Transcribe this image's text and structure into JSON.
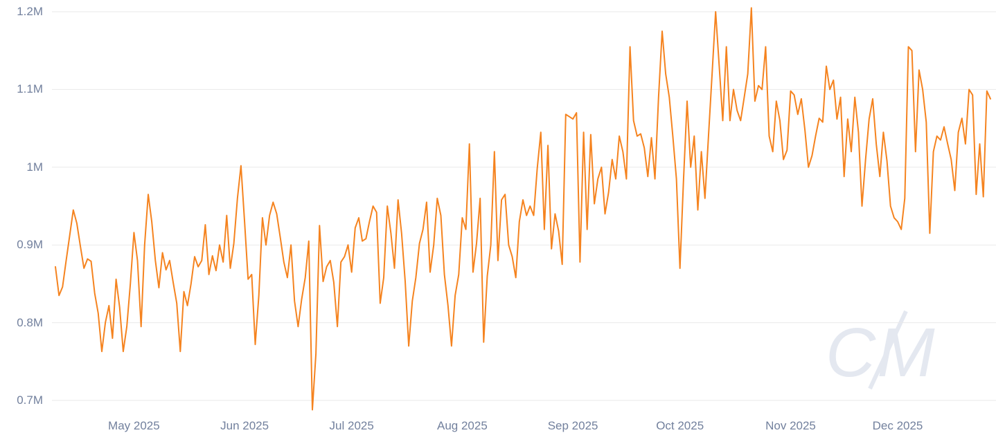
{
  "watermark": {
    "text": "CM"
  },
  "theme": {
    "background": "#ffffff",
    "gridline_color": "#e9e9e9",
    "axis_label_color": "#72809d",
    "watermark_color": "#e4e8f0"
  },
  "chart_data": {
    "type": "line",
    "title": "",
    "xlabel": "",
    "ylabel": "",
    "grid": true,
    "legend": false,
    "unit": "M",
    "x_start_date": "2025-04-09",
    "frequency": "daily",
    "ylim": [
      0.685,
      1.21
    ],
    "y_tick_values": [
      0.7,
      0.8,
      0.9,
      1.0,
      1.1,
      1.2
    ],
    "y_tick_labels": [
      "0.7M",
      "0.8M",
      "0.9M",
      "1M",
      "1.1M",
      "1.2M"
    ],
    "x_tick_labels": [
      "May 2025",
      "Jun 2025",
      "Jul 2025",
      "Aug 2025",
      "Sep 2025",
      "Oct 2025",
      "Nov 2025",
      "Dec 2025"
    ],
    "x_tick_day_indices": [
      22,
      53,
      83,
      114,
      145,
      175,
      206,
      236
    ],
    "series": [
      {
        "name": "value",
        "color": "#f5831f",
        "values": [
          0.872,
          0.835,
          0.846,
          0.88,
          0.912,
          0.945,
          0.928,
          0.898,
          0.87,
          0.882,
          0.879,
          0.838,
          0.812,
          0.763,
          0.8,
          0.822,
          0.78,
          0.856,
          0.82,
          0.763,
          0.795,
          0.85,
          0.916,
          0.88,
          0.795,
          0.9,
          0.965,
          0.93,
          0.88,
          0.845,
          0.89,
          0.868,
          0.88,
          0.852,
          0.825,
          0.763,
          0.84,
          0.822,
          0.85,
          0.885,
          0.872,
          0.88,
          0.926,
          0.862,
          0.886,
          0.867,
          0.9,
          0.878,
          0.938,
          0.87,
          0.902,
          0.96,
          1.002,
          0.93,
          0.856,
          0.862,
          0.772,
          0.835,
          0.935,
          0.9,
          0.938,
          0.955,
          0.94,
          0.91,
          0.878,
          0.858,
          0.9,
          0.828,
          0.795,
          0.83,
          0.858,
          0.905,
          0.688,
          0.76,
          0.925,
          0.853,
          0.872,
          0.88,
          0.852,
          0.795,
          0.878,
          0.885,
          0.9,
          0.865,
          0.922,
          0.935,
          0.905,
          0.908,
          0.93,
          0.95,
          0.942,
          0.825,
          0.858,
          0.95,
          0.915,
          0.87,
          0.958,
          0.915,
          0.853,
          0.77,
          0.828,
          0.858,
          0.902,
          0.92,
          0.955,
          0.865,
          0.9,
          0.96,
          0.938,
          0.862,
          0.822,
          0.77,
          0.835,
          0.862,
          0.935,
          0.92,
          1.03,
          0.865,
          0.902,
          0.96,
          0.775,
          0.86,
          0.9,
          1.02,
          0.88,
          0.958,
          0.965,
          0.9,
          0.885,
          0.858,
          0.93,
          0.958,
          0.938,
          0.95,
          0.938,
          0.998,
          1.045,
          0.92,
          1.028,
          0.895,
          0.94,
          0.918,
          0.875,
          1.068,
          1.065,
          1.062,
          1.07,
          0.878,
          1.045,
          0.92,
          1.042,
          0.953,
          0.985,
          1.0,
          0.94,
          0.968,
          1.01,
          0.985,
          1.04,
          1.02,
          0.985,
          1.155,
          1.06,
          1.04,
          1.043,
          1.025,
          0.988,
          1.038,
          0.985,
          1.09,
          1.175,
          1.12,
          1.09,
          1.04,
          0.985,
          0.87,
          0.985,
          1.085,
          1.0,
          1.04,
          0.945,
          1.02,
          0.96,
          1.04,
          1.12,
          1.2,
          1.13,
          1.06,
          1.155,
          1.06,
          1.1,
          1.073,
          1.06,
          1.09,
          1.12,
          1.205,
          1.085,
          1.105,
          1.1,
          1.155,
          1.04,
          1.02,
          1.085,
          1.06,
          1.01,
          1.022,
          1.098,
          1.093,
          1.068,
          1.088,
          1.048,
          1.0,
          1.015,
          1.04,
          1.063,
          1.058,
          1.13,
          1.1,
          1.112,
          1.062,
          1.09,
          0.988,
          1.062,
          1.02,
          1.09,
          1.045,
          0.95,
          1.01,
          1.062,
          1.088,
          1.03,
          0.988,
          1.045,
          1.008,
          0.95,
          0.935,
          0.93,
          0.92,
          0.96,
          1.155,
          1.15,
          1.02,
          1.125,
          1.1,
          1.058,
          0.915,
          1.02,
          1.04,
          1.035,
          1.052,
          1.03,
          1.01,
          0.97,
          1.045,
          1.063,
          1.03,
          1.1,
          1.093,
          0.965,
          1.03,
          0.962,
          1.098,
          1.088
        ]
      }
    ]
  }
}
